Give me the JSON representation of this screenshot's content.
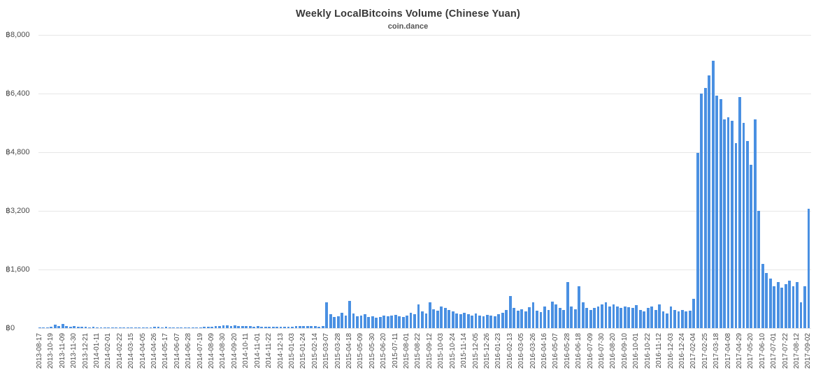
{
  "page": {
    "background": "#ffffff"
  },
  "chart_data": {
    "type": "bar",
    "title": "Weekly LocalBitcoins Volume (Chinese Yuan)",
    "subtitle": "coin.dance",
    "xlabel": "",
    "ylabel": "",
    "ylim": [
      0,
      8000
    ],
    "grid": true,
    "legend": false,
    "bar_color": "#4a90e2",
    "y_ticks": [
      {
        "value": 0,
        "label": "฿0"
      },
      {
        "value": 1600,
        "label": "฿1,600"
      },
      {
        "value": 3200,
        "label": "฿3,200"
      },
      {
        "value": 4800,
        "label": "฿4,800"
      },
      {
        "value": 6400,
        "label": "฿6,400"
      },
      {
        "value": 8000,
        "label": "฿8,000"
      }
    ],
    "bars_per_tick": 3,
    "x_tick_labels": [
      "2013-08-17",
      "2013-10-19",
      "2013-11-09",
      "2013-11-30",
      "2013-12-21",
      "2014-01-11",
      "2014-02-01",
      "2014-02-22",
      "2014-03-15",
      "2014-04-05",
      "2014-04-26",
      "2014-05-17",
      "2014-06-07",
      "2014-06-28",
      "2014-07-19",
      "2014-08-09",
      "2014-08-30",
      "2014-09-20",
      "2014-10-11",
      "2014-11-01",
      "2014-11-22",
      "2014-12-13",
      "2015-01-03",
      "2015-01-24",
      "2015-02-14",
      "2015-03-07",
      "2015-03-28",
      "2015-04-18",
      "2015-05-09",
      "2015-05-30",
      "2015-06-20",
      "2015-07-11",
      "2015-08-01",
      "2015-08-22",
      "2015-09-12",
      "2015-10-03",
      "2015-10-24",
      "2015-11-14",
      "2015-12-05",
      "2015-12-26",
      "2016-01-23",
      "2016-02-13",
      "2016-03-05",
      "2016-03-26",
      "2016-04-16",
      "2016-05-07",
      "2016-05-28",
      "2016-06-18",
      "2016-07-09",
      "2016-07-30",
      "2016-08-20",
      "2016-09-10",
      "2016-10-01",
      "2016-10-22",
      "2016-11-12",
      "2016-12-03",
      "2016-12-24",
      "2017-02-04",
      "2017-02-25",
      "2017-03-18",
      "2017-04-08",
      "2017-04-29",
      "2017-05-20",
      "2017-06-10",
      "2017-07-01",
      "2017-07-22",
      "2017-08-12",
      "2017-09-02"
    ],
    "values": [
      10,
      15,
      20,
      30,
      90,
      50,
      110,
      60,
      45,
      50,
      40,
      35,
      30,
      25,
      30,
      25,
      20,
      25,
      20,
      15,
      20,
      25,
      20,
      15,
      20,
      15,
      15,
      20,
      15,
      20,
      35,
      30,
      25,
      30,
      25,
      20,
      25,
      20,
      15,
      20,
      25,
      20,
      25,
      30,
      35,
      40,
      50,
      60,
      70,
      75,
      65,
      70,
      60,
      55,
      60,
      50,
      45,
      50,
      45,
      40,
      45,
      40,
      35,
      40,
      35,
      40,
      45,
      50,
      55,
      60,
      55,
      50,
      55,
      45,
      60,
      700,
      380,
      300,
      330,
      420,
      350,
      750,
      400,
      320,
      350,
      380,
      300,
      320,
      280,
      310,
      350,
      320,
      340,
      360,
      330,
      300,
      340,
      420,
      380,
      650,
      450,
      400,
      700,
      520,
      480,
      600,
      550,
      500,
      450,
      400,
      380,
      420,
      380,
      350,
      400,
      350,
      330,
      360,
      340,
      320,
      380,
      420,
      500,
      880,
      550,
      480,
      520,
      460,
      580,
      700,
      480,
      440,
      600,
      500,
      720,
      650,
      550,
      500,
      1250,
      600,
      520,
      1150,
      700,
      550,
      500,
      550,
      600,
      650,
      700,
      600,
      650,
      600,
      550,
      600,
      580,
      550,
      620,
      500,
      450,
      550,
      600,
      500,
      650,
      450,
      400,
      600,
      500,
      450,
      500,
      450,
      480,
      800,
      4790,
      6400,
      6550,
      6900,
      7300,
      6350,
      6250,
      5700,
      5750,
      5650,
      5050,
      6300,
      5600,
      5100,
      4450,
      5700,
      3200,
      1750,
      1500,
      1350,
      1150,
      1250,
      1100,
      1200,
      1300,
      1150,
      1250,
      700,
      1150,
      3250
    ]
  }
}
